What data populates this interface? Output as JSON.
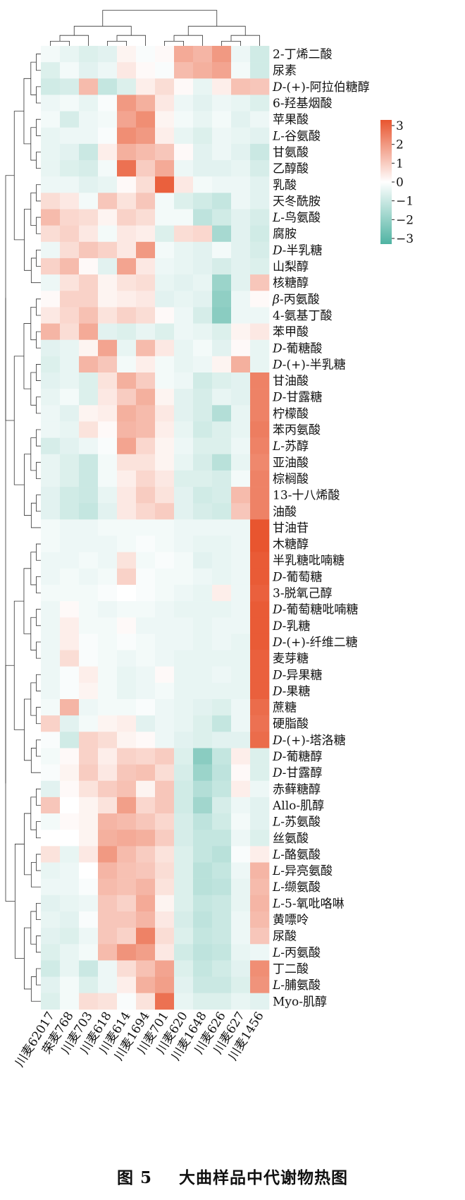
{
  "caption": {
    "figure": "图 5",
    "title": "大曲样品中代谢物热图"
  },
  "chart_data": {
    "type": "heatmap",
    "colorscale": {
      "low": "#4fb3a2",
      "mid": "#ffffff",
      "high": "#e8552f",
      "range": [
        -3,
        3
      ],
      "ticks": [
        "3",
        "2",
        "1",
        "0",
        "−1",
        "−2",
        "−3"
      ]
    },
    "columns": [
      "川麦62017",
      "荣麦768",
      "川麦703",
      "川麦618",
      "川麦614",
      "川麦1694",
      "川麦701",
      "川麦620",
      "川麦1648",
      "川麦626",
      "川麦627",
      "川麦1456"
    ],
    "rows": [
      {
        "label": "2-丁烯二酸",
        "values": [
          -0.2,
          -0.4,
          -0.6,
          -0.5,
          0.2,
          -0.1,
          0.1,
          1.5,
          1.3,
          1.8,
          -0.3,
          -0.8
        ]
      },
      {
        "label": "尿素",
        "values": [
          -0.6,
          -0.2,
          -0.5,
          -0.3,
          0.4,
          0.1,
          -0.1,
          1.2,
          1.4,
          1.6,
          -0.2,
          -0.8
        ]
      },
      {
        "label": "D-(+)-阿拉伯糖醇",
        "values": [
          -0.8,
          -0.7,
          1.2,
          -1.0,
          -0.6,
          0.3,
          0.6,
          0.1,
          -0.4,
          0.3,
          1.1,
          1.0
        ]
      },
      {
        "label": "6-羟基烟酸",
        "values": [
          -0.3,
          -0.2,
          -0.4,
          -0.1,
          1.8,
          1.4,
          0.4,
          -0.3,
          -0.5,
          -0.3,
          -0.4,
          -0.6
        ]
      },
      {
        "label": "苹果酸",
        "values": [
          -0.2,
          -0.7,
          -0.3,
          -0.2,
          1.6,
          2.0,
          0.2,
          -0.2,
          -0.4,
          -0.2,
          -0.5,
          -0.3
        ]
      },
      {
        "label": "L-谷氨酸",
        "values": [
          -0.4,
          -0.3,
          -0.3,
          -0.1,
          2.0,
          1.8,
          0.3,
          -0.4,
          -0.6,
          -0.3,
          -0.4,
          -0.5
        ]
      },
      {
        "label": "甘氨酸",
        "values": [
          -0.4,
          -0.5,
          -0.9,
          0.3,
          1.4,
          1.2,
          1.0,
          0.1,
          -0.5,
          -0.3,
          -0.5,
          -0.9
        ]
      },
      {
        "label": "乙醇酸",
        "values": [
          -0.4,
          -0.6,
          -0.7,
          -0.2,
          2.5,
          0.9,
          1.5,
          -0.3,
          -0.5,
          -0.5,
          -0.4,
          -0.7
        ]
      },
      {
        "label": "乳酸",
        "values": [
          -0.3,
          -0.3,
          -0.5,
          -0.4,
          0.1,
          0.6,
          2.8,
          0.4,
          -0.2,
          -0.3,
          -0.3,
          -0.5
        ]
      },
      {
        "label": "天冬酰胺",
        "values": [
          0.6,
          0.4,
          -0.2,
          1.0,
          0.5,
          1.0,
          -0.2,
          -0.6,
          -0.8,
          -1.0,
          -0.3,
          -0.5
        ]
      },
      {
        "label": "L-鸟氨酸",
        "values": [
          1.2,
          0.7,
          0.6,
          0.2,
          0.8,
          0.6,
          -0.2,
          -0.2,
          -1.1,
          -0.8,
          -0.5,
          -0.7
        ]
      },
      {
        "label": "腐胺",
        "values": [
          0.6,
          0.8,
          0.4,
          -0.2,
          0.4,
          0.3,
          -0.6,
          0.6,
          0.7,
          -1.5,
          -0.5,
          -0.8
        ]
      },
      {
        "label": "D-半乳糖",
        "values": [
          -0.3,
          0.6,
          1.0,
          0.8,
          0.4,
          1.8,
          -0.2,
          -0.4,
          -0.5,
          -0.2,
          -0.5,
          -0.7
        ]
      },
      {
        "label": "山梨醇",
        "values": [
          0.8,
          1.2,
          0.1,
          -0.5,
          1.6,
          0.4,
          -0.3,
          -0.4,
          -0.5,
          -0.7,
          -0.5,
          -0.6
        ]
      },
      {
        "label": "核糖醇",
        "values": [
          -0.3,
          0.5,
          0.8,
          0.2,
          0.5,
          0.6,
          -0.4,
          -0.5,
          -0.4,
          -1.7,
          -0.5,
          1.0
        ]
      },
      {
        "label": "β-丙氨酸",
        "values": [
          0.1,
          0.8,
          0.8,
          0.2,
          0.3,
          0.4,
          -0.5,
          -0.4,
          -0.5,
          -1.9,
          -0.3,
          0.1
        ]
      },
      {
        "label": "4-氨基丁酸",
        "values": [
          0.4,
          0.7,
          1.1,
          0.5,
          0.8,
          0.6,
          0.1,
          -0.3,
          -0.7,
          -2.0,
          -0.3,
          -0.3
        ]
      },
      {
        "label": "苯甲酸",
        "values": [
          1.3,
          0.6,
          1.5,
          -0.5,
          -0.6,
          -0.4,
          -0.6,
          -0.3,
          -0.4,
          -0.6,
          0.2,
          0.4
        ]
      },
      {
        "label": "D-葡糖酸",
        "values": [
          -0.5,
          -0.4,
          0.2,
          1.6,
          -0.4,
          1.2,
          0.4,
          -0.4,
          -0.2,
          -0.5,
          0.1,
          -0.4
        ]
      },
      {
        "label": "D-(+)-半乳糖",
        "values": [
          -0.6,
          -0.4,
          1.3,
          1.0,
          -0.2,
          0.3,
          -0.2,
          -0.4,
          -0.3,
          0.2,
          1.4,
          -0.4
        ]
      },
      {
        "label": "甘油酸",
        "values": [
          -0.5,
          -0.4,
          -0.6,
          0.5,
          1.4,
          0.9,
          -0.2,
          -0.3,
          -0.8,
          -0.6,
          -0.5,
          2.2
        ]
      },
      {
        "label": "D-甘露糖",
        "values": [
          -0.4,
          -0.2,
          -0.6,
          0.4,
          0.9,
          1.4,
          0.2,
          -0.5,
          -0.7,
          -0.4,
          -0.5,
          2.2
        ]
      },
      {
        "label": "柠檬酸",
        "values": [
          -0.3,
          -0.5,
          0.2,
          0.3,
          1.4,
          1.2,
          0.4,
          -0.5,
          -0.7,
          -1.3,
          -0.4,
          2.2
        ]
      },
      {
        "label": "苯丙氨酸",
        "values": [
          -0.3,
          -0.4,
          0.5,
          0.1,
          1.3,
          1.2,
          0.3,
          -0.4,
          -0.8,
          -0.6,
          -0.4,
          2.3
        ]
      },
      {
        "label": "L-苏醇",
        "values": [
          -0.7,
          -0.5,
          -0.3,
          -0.1,
          1.6,
          0.7,
          0.2,
          -0.3,
          -0.6,
          -0.6,
          -0.3,
          2.2
        ]
      },
      {
        "label": "亚油酸",
        "values": [
          -0.4,
          -0.6,
          -0.9,
          -0.2,
          0.5,
          0.5,
          0.2,
          -0.4,
          -0.7,
          -1.2,
          -0.4,
          2.1
        ]
      },
      {
        "label": "棕榈酸",
        "values": [
          -0.4,
          -0.6,
          -0.9,
          -0.2,
          0.3,
          0.7,
          0.4,
          -0.6,
          -0.6,
          -0.7,
          -0.2,
          2.2
        ]
      },
      {
        "label": "13-十八烯酸",
        "values": [
          -0.5,
          -0.8,
          -0.9,
          -0.4,
          0.4,
          0.9,
          0.5,
          -0.5,
          -0.8,
          -0.7,
          1.2,
          2.2
        ]
      },
      {
        "label": "油酸",
        "values": [
          -0.5,
          -0.8,
          -1.0,
          -0.5,
          0.4,
          0.7,
          0.9,
          -0.5,
          -0.7,
          -0.8,
          1.0,
          2.2
        ]
      },
      {
        "label": "甘油苷",
        "values": [
          -0.2,
          -0.3,
          -0.3,
          -0.2,
          -0.2,
          -0.2,
          -0.2,
          -0.3,
          -0.3,
          -0.3,
          -0.3,
          3.0
        ]
      },
      {
        "label": "木糖醇",
        "values": [
          -0.2,
          -0.3,
          -0.3,
          -0.3,
          -0.2,
          -0.1,
          -0.2,
          -0.3,
          -0.4,
          -0.4,
          -0.3,
          3.0
        ]
      },
      {
        "label": "半乳糖吡喃糖",
        "values": [
          -0.3,
          -0.3,
          -0.2,
          -0.3,
          0.5,
          -0.2,
          -0.1,
          -0.2,
          -0.5,
          -0.4,
          -0.3,
          2.9
        ]
      },
      {
        "label": "D-葡萄糖",
        "values": [
          -0.3,
          -0.2,
          -0.3,
          -0.2,
          0.8,
          -0.1,
          -0.2,
          -0.2,
          -0.3,
          -0.4,
          -0.3,
          2.9
        ]
      },
      {
        "label": "3-脱氧己醇",
        "values": [
          -0.2,
          -0.2,
          -0.2,
          -0.1,
          0.0,
          -0.1,
          -0.2,
          -0.3,
          -0.4,
          0.3,
          -0.3,
          2.8
        ]
      },
      {
        "label": "D-葡萄糖吡喃糖",
        "values": [
          -0.3,
          0.1,
          -0.2,
          -0.3,
          -0.2,
          -0.2,
          -0.3,
          -0.4,
          -0.4,
          -0.4,
          -0.3,
          2.9
        ]
      },
      {
        "label": "D-乳糖",
        "values": [
          -0.3,
          0.3,
          -0.2,
          -0.2,
          0.1,
          -0.3,
          -0.3,
          -0.3,
          -0.4,
          -0.3,
          -0.3,
          2.9
        ]
      },
      {
        "label": "D-(+)-纤维二糖",
        "values": [
          -0.3,
          0.3,
          -0.1,
          -0.2,
          -0.1,
          -0.2,
          -0.3,
          -0.3,
          -0.4,
          -0.3,
          -0.4,
          2.9
        ]
      },
      {
        "label": "麦芽糖",
        "values": [
          -0.3,
          0.6,
          -0.1,
          -0.2,
          -0.3,
          -0.2,
          -0.3,
          -0.4,
          -0.4,
          -0.4,
          -0.4,
          2.8
        ]
      },
      {
        "label": "D-异果糖",
        "values": [
          -0.3,
          -0.1,
          0.3,
          -0.2,
          -0.4,
          -0.3,
          0.1,
          -0.4,
          -0.4,
          -0.3,
          -0.4,
          2.8
        ]
      },
      {
        "label": "D-果糖",
        "values": [
          -0.3,
          -0.1,
          0.2,
          -0.2,
          -0.4,
          -0.3,
          -0.2,
          -0.4,
          -0.4,
          -0.4,
          -0.4,
          2.8
        ]
      },
      {
        "label": "蔗糖",
        "values": [
          -0.2,
          1.3,
          -0.3,
          -0.2,
          -0.2,
          -0.1,
          -0.3,
          -0.4,
          -0.5,
          -0.6,
          -0.3,
          2.6
        ]
      },
      {
        "label": "硬脂酸",
        "values": [
          0.8,
          -0.5,
          -0.2,
          0.2,
          0.3,
          -0.5,
          -0.3,
          -0.4,
          -0.6,
          -1.0,
          -0.3,
          2.5
        ]
      },
      {
        "label": "D-(+)-塔洛糖",
        "values": [
          -0.1,
          -0.8,
          0.8,
          0.6,
          0.2,
          0.1,
          -0.3,
          -0.5,
          -0.6,
          -0.5,
          -0.5,
          2.6
        ]
      },
      {
        "label": "D-葡糖醇",
        "values": [
          -0.2,
          0.1,
          0.8,
          0.3,
          0.8,
          0.7,
          0.9,
          -0.6,
          -2.0,
          -1.0,
          0.3,
          -0.6
        ]
      },
      {
        "label": "D-甘露醇",
        "values": [
          -0.1,
          0.2,
          0.9,
          0.4,
          1.0,
          1.1,
          0.6,
          -0.7,
          -1.7,
          -1.1,
          0.1,
          -0.6
        ]
      },
      {
        "label": "赤藓糖醇",
        "values": [
          -0.5,
          0.1,
          0.5,
          0.9,
          1.1,
          0.2,
          1.0,
          -0.8,
          -1.3,
          -1.0,
          0.3,
          -0.3
        ]
      },
      {
        "label": "Allo-肌醇",
        "values": [
          1.0,
          0.0,
          0.2,
          0.5,
          1.7,
          0.7,
          1.0,
          -0.8,
          -1.6,
          -0.7,
          -0.3,
          -0.5
        ]
      },
      {
        "label": "L-苏氨酸",
        "values": [
          -0.2,
          0.1,
          0.2,
          1.3,
          1.2,
          1.0,
          0.7,
          -0.7,
          -1.1,
          -0.8,
          -0.2,
          -0.5
        ]
      },
      {
        "label": "丝氨酸",
        "values": [
          0.0,
          0.0,
          0.2,
          1.4,
          1.5,
          1.4,
          0.9,
          -0.7,
          -1.0,
          -1.0,
          -0.3,
          -0.6
        ]
      },
      {
        "label": "L-酪氨酸",
        "values": [
          0.5,
          -0.4,
          0.4,
          1.8,
          1.2,
          0.9,
          0.5,
          -0.6,
          -1.0,
          -1.2,
          -0.1,
          0.3
        ]
      },
      {
        "label": "L-异亮氨酸",
        "values": [
          -0.4,
          -0.3,
          0.0,
          1.3,
          1.1,
          1.0,
          0.6,
          -0.6,
          -1.2,
          -1.0,
          -0.3,
          1.3
        ]
      },
      {
        "label": "L-缬氨酸",
        "values": [
          -0.3,
          -0.3,
          -0.1,
          1.2,
          1.1,
          1.3,
          0.5,
          -0.6,
          -1.2,
          -1.1,
          -0.4,
          1.2
        ]
      },
      {
        "label": "L-5-氧吡咯啉",
        "values": [
          -0.5,
          -0.4,
          -0.3,
          1.0,
          0.8,
          1.5,
          0.2,
          -0.6,
          -1.0,
          -0.9,
          -0.4,
          1.3
        ]
      },
      {
        "label": "黄嘌呤",
        "values": [
          -0.4,
          -0.5,
          -0.1,
          1.0,
          1.0,
          1.3,
          0.4,
          -0.7,
          -1.1,
          -0.9,
          -0.3,
          1.2
        ]
      },
      {
        "label": "尿酸",
        "values": [
          -0.5,
          -0.6,
          -0.3,
          1.0,
          0.8,
          2.2,
          0.6,
          -0.6,
          -1.0,
          -0.9,
          -0.3,
          1.0
        ]
      },
      {
        "label": "L-丙氨酸",
        "values": [
          -0.6,
          -0.4,
          -0.2,
          1.2,
          1.9,
          1.7,
          0.4,
          -0.8,
          -1.1,
          -1.0,
          -0.4,
          -0.3
        ]
      },
      {
        "label": "丁二酸",
        "values": [
          -0.8,
          -0.4,
          -0.9,
          -0.3,
          0.6,
          1.1,
          1.6,
          -0.6,
          -1.0,
          -0.8,
          -0.5,
          2.0
        ]
      },
      {
        "label": "L-脯氨酸",
        "values": [
          -0.5,
          -0.2,
          -0.6,
          -0.3,
          0.3,
          1.4,
          1.7,
          -0.5,
          -0.9,
          -0.9,
          -0.6,
          1.9
        ]
      },
      {
        "label": "Myo-肌醇",
        "values": [
          -0.6,
          -0.2,
          0.6,
          0.5,
          -0.1,
          0.5,
          2.5,
          -0.4,
          -0.6,
          -0.6,
          -0.4,
          -0.5
        ]
      }
    ]
  }
}
